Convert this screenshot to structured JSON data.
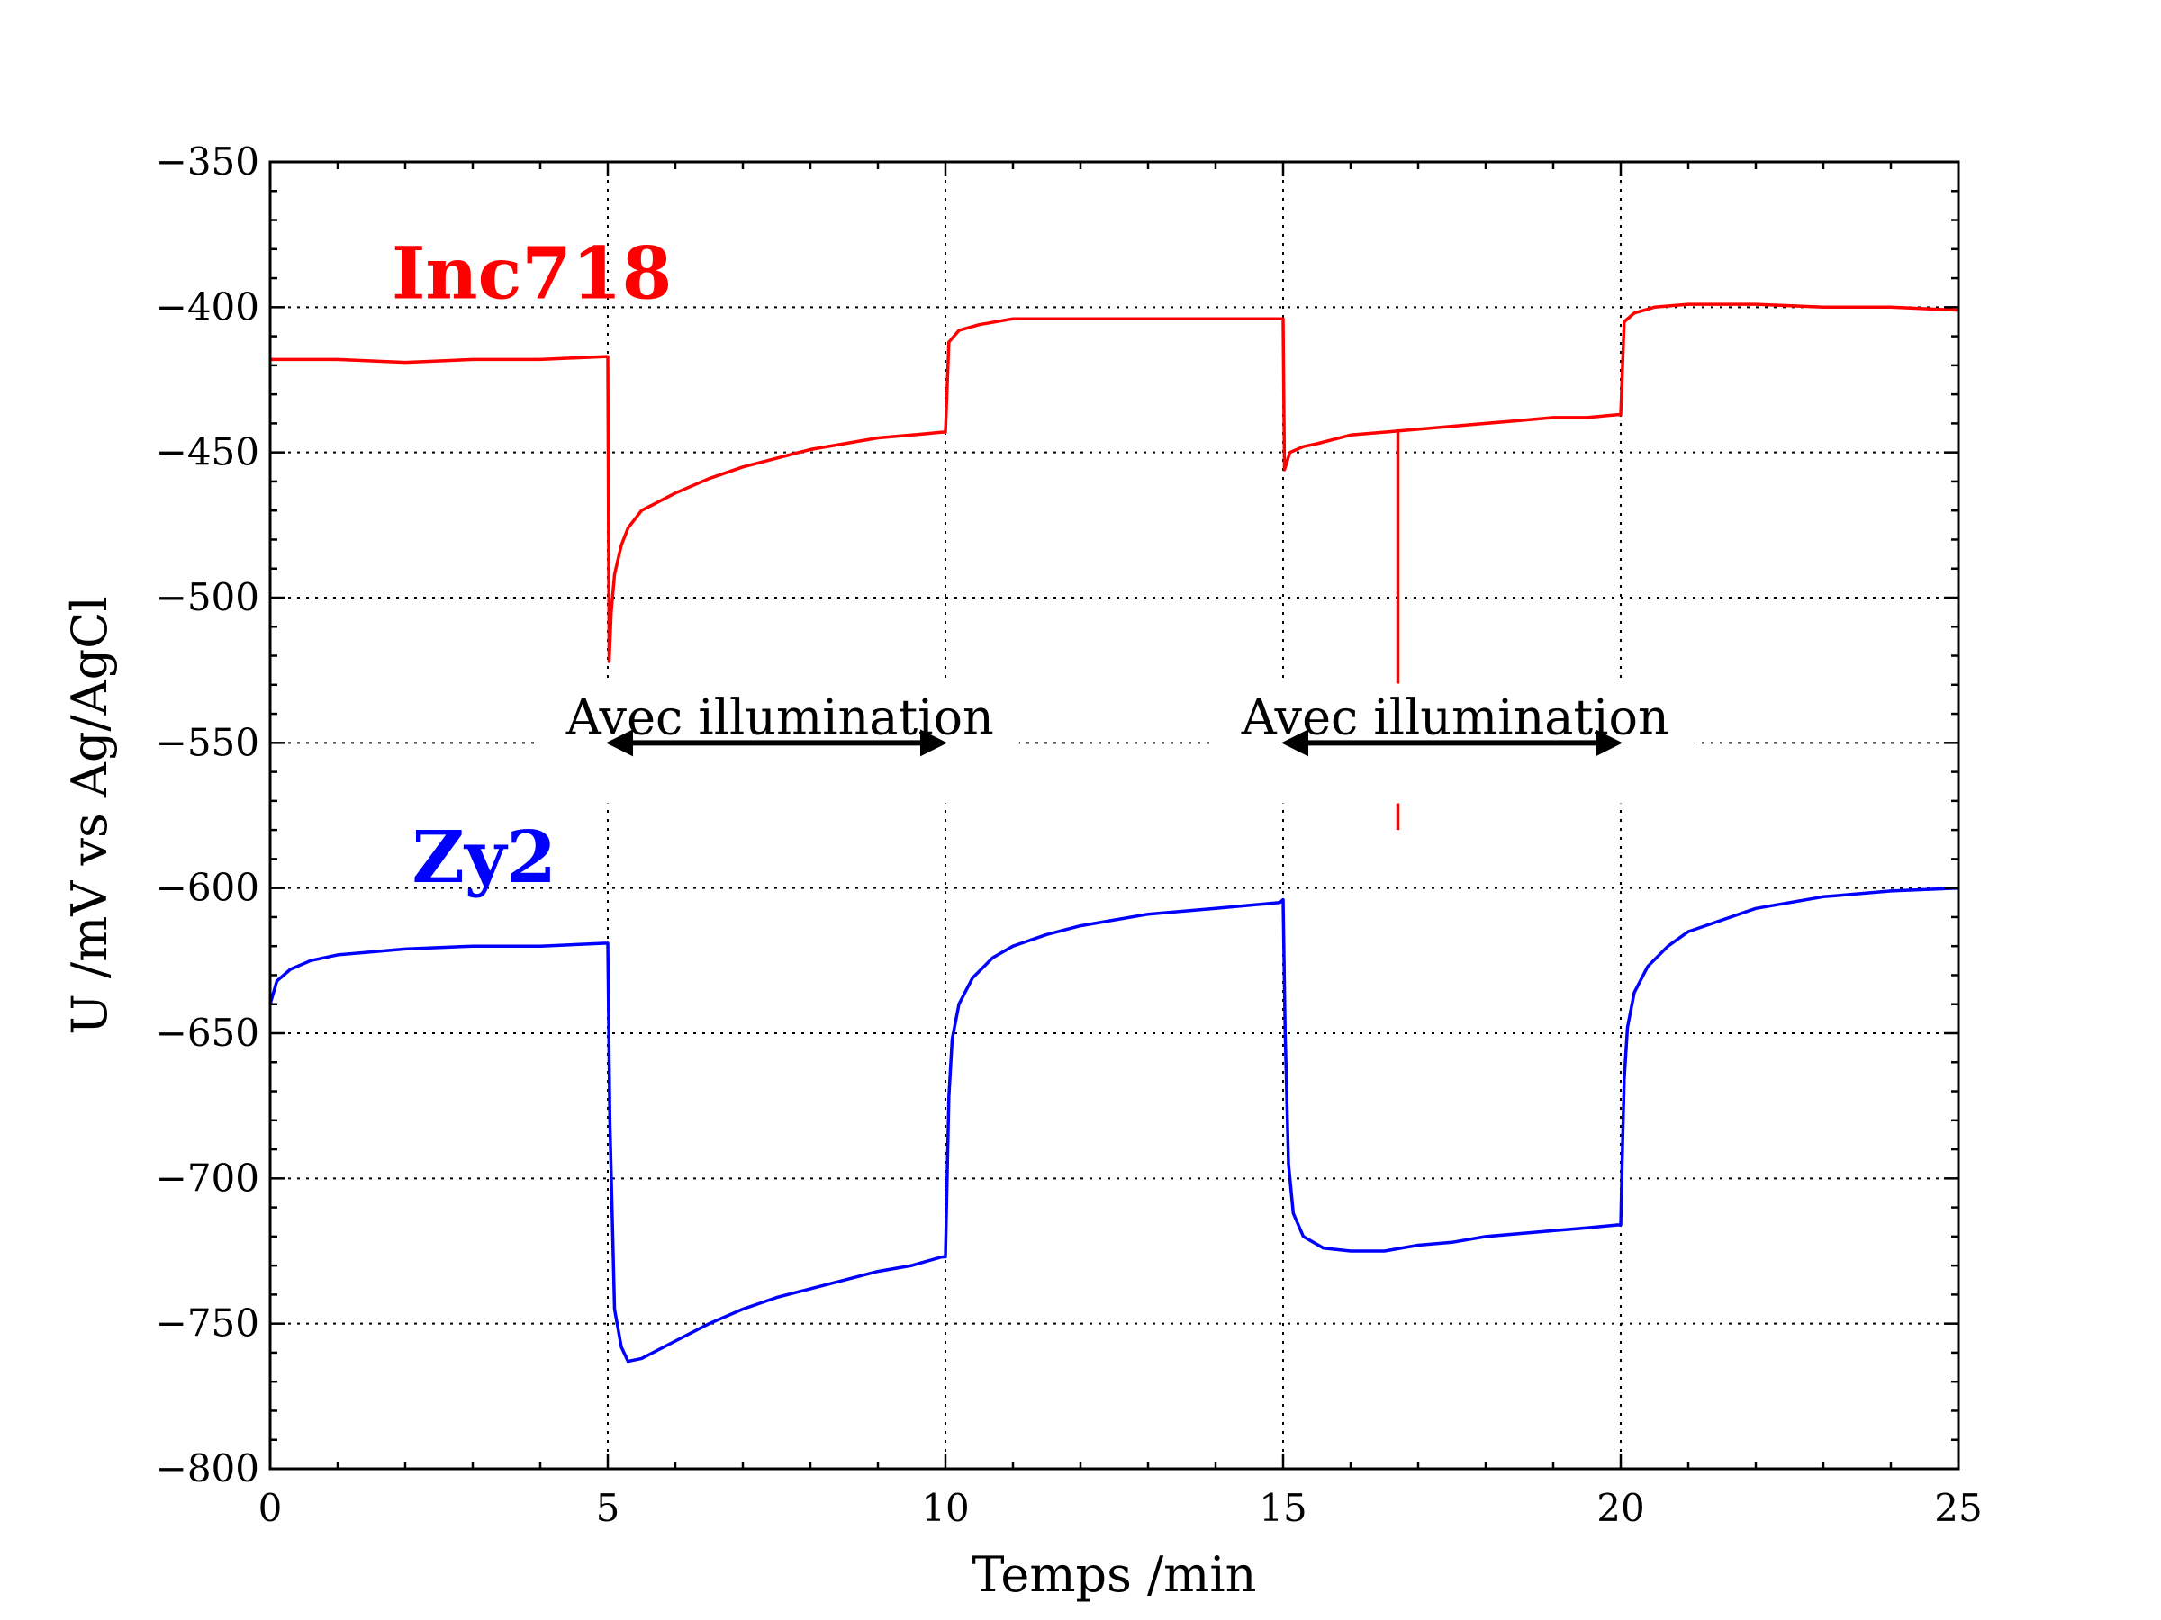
{
  "chart_data": {
    "type": "line",
    "xlabel": "Temps /min",
    "ylabel": "U /mV vs Ag/AgCl",
    "xlim": [
      0,
      25
    ],
    "ylim": [
      -800,
      -350
    ],
    "xticks": [
      0,
      5,
      10,
      15,
      20,
      25
    ],
    "yticks": [
      -350,
      -400,
      -450,
      -500,
      -550,
      -600,
      -650,
      -700,
      -750,
      -800
    ],
    "xtick_labels": [
      "0",
      "5",
      "10",
      "15",
      "20",
      "25"
    ],
    "ytick_labels": [
      "−350",
      "−400",
      "−450",
      "−500",
      "−550",
      "−600",
      "−650",
      "−700",
      "−750",
      "−800"
    ],
    "grid": true,
    "series": [
      {
        "name": "Inc718",
        "color": "#ff0000",
        "x": [
          0,
          1,
          2,
          3,
          4,
          4.95,
          5.0,
          5.02,
          5.05,
          5.1,
          5.2,
          5.3,
          5.5,
          6.0,
          6.5,
          7.0,
          7.5,
          8.0,
          8.5,
          9.0,
          9.5,
          9.95,
          10.0,
          10.05,
          10.2,
          10.5,
          11,
          12,
          13,
          14,
          14.95,
          15.0,
          15.02,
          15.1,
          15.3,
          15.5,
          16,
          16.5,
          17,
          17.5,
          18,
          18.5,
          19,
          19.5,
          19.95,
          20.0,
          20.05,
          20.2,
          20.5,
          21,
          22,
          23,
          24,
          25
        ],
        "y": [
          -418,
          -418,
          -419,
          -418,
          -418,
          -417,
          -417,
          -522,
          -505,
          -492,
          -482,
          -476,
          -470,
          -464,
          -459,
          -455,
          -452,
          -449,
          -447,
          -445,
          -444,
          -443,
          -443,
          -412,
          -408,
          -406,
          -404,
          -404,
          -404,
          -404,
          -404,
          -404,
          -456,
          -450,
          -448,
          -447,
          -444,
          -443,
          -442,
          -441,
          -440,
          -439,
          -438,
          -438,
          -437,
          -437,
          -405,
          -402,
          -400,
          -399,
          -399,
          -400,
          -400,
          -401
        ]
      },
      {
        "name": "Zy2",
        "color": "#0000ff",
        "x": [
          0,
          0.1,
          0.3,
          0.6,
          1,
          2,
          3,
          4,
          4.95,
          5.0,
          5.03,
          5.1,
          5.2,
          5.3,
          5.5,
          6.0,
          6.5,
          7.0,
          7.5,
          8.0,
          8.5,
          9.0,
          9.5,
          9.95,
          10.0,
          10.02,
          10.05,
          10.1,
          10.2,
          10.4,
          10.7,
          11,
          11.5,
          12,
          13,
          14,
          14.95,
          15.0,
          15.03,
          15.08,
          15.15,
          15.3,
          15.6,
          16,
          16.5,
          17,
          17.5,
          18,
          18.5,
          19,
          19.5,
          19.95,
          20.0,
          20.02,
          20.05,
          20.1,
          20.2,
          20.4,
          20.7,
          21,
          21.5,
          22,
          23,
          24,
          25
        ],
        "y": [
          -640,
          -632,
          -628,
          -625,
          -623,
          -621,
          -620,
          -620,
          -619,
          -619,
          -680,
          -745,
          -758,
          -763,
          -762,
          -756,
          -750,
          -745,
          -741,
          -738,
          -735,
          -732,
          -730,
          -727,
          -727,
          -705,
          -672,
          -652,
          -640,
          -631,
          -624,
          -620,
          -616,
          -613,
          -609,
          -607,
          -605,
          -604,
          -650,
          -695,
          -712,
          -720,
          -724,
          -725,
          -725,
          -723,
          -722,
          -720,
          -719,
          -718,
          -717,
          -716,
          -716,
          -695,
          -666,
          -648,
          -636,
          -627,
          -620,
          -615,
          -611,
          -607,
          -603,
          -601,
          -600
        ]
      },
      {
        "name": "",
        "color": "#ff0000",
        "x": [
          16.7,
          16.7
        ],
        "y": [
          -442,
          -580
        ]
      }
    ],
    "series_labels": [
      {
        "text": "Inc718",
        "color": "#ff0000",
        "x": 1.8,
        "y": -397
      },
      {
        "text": "Zy2",
        "color": "#0000ff",
        "x": 2.1,
        "y": -598
      }
    ],
    "annotations": [
      {
        "text": "Avec illumination",
        "text_x": 7.55,
        "text_y": -542,
        "arrow_from": 5.0,
        "arrow_to": 10.0,
        "arrow_y": -550
      },
      {
        "text": "Avec illumination",
        "text_x": 17.55,
        "text_y": -542,
        "arrow_from": 15.0,
        "arrow_to": 20.0,
        "arrow_y": -550
      }
    ]
  }
}
